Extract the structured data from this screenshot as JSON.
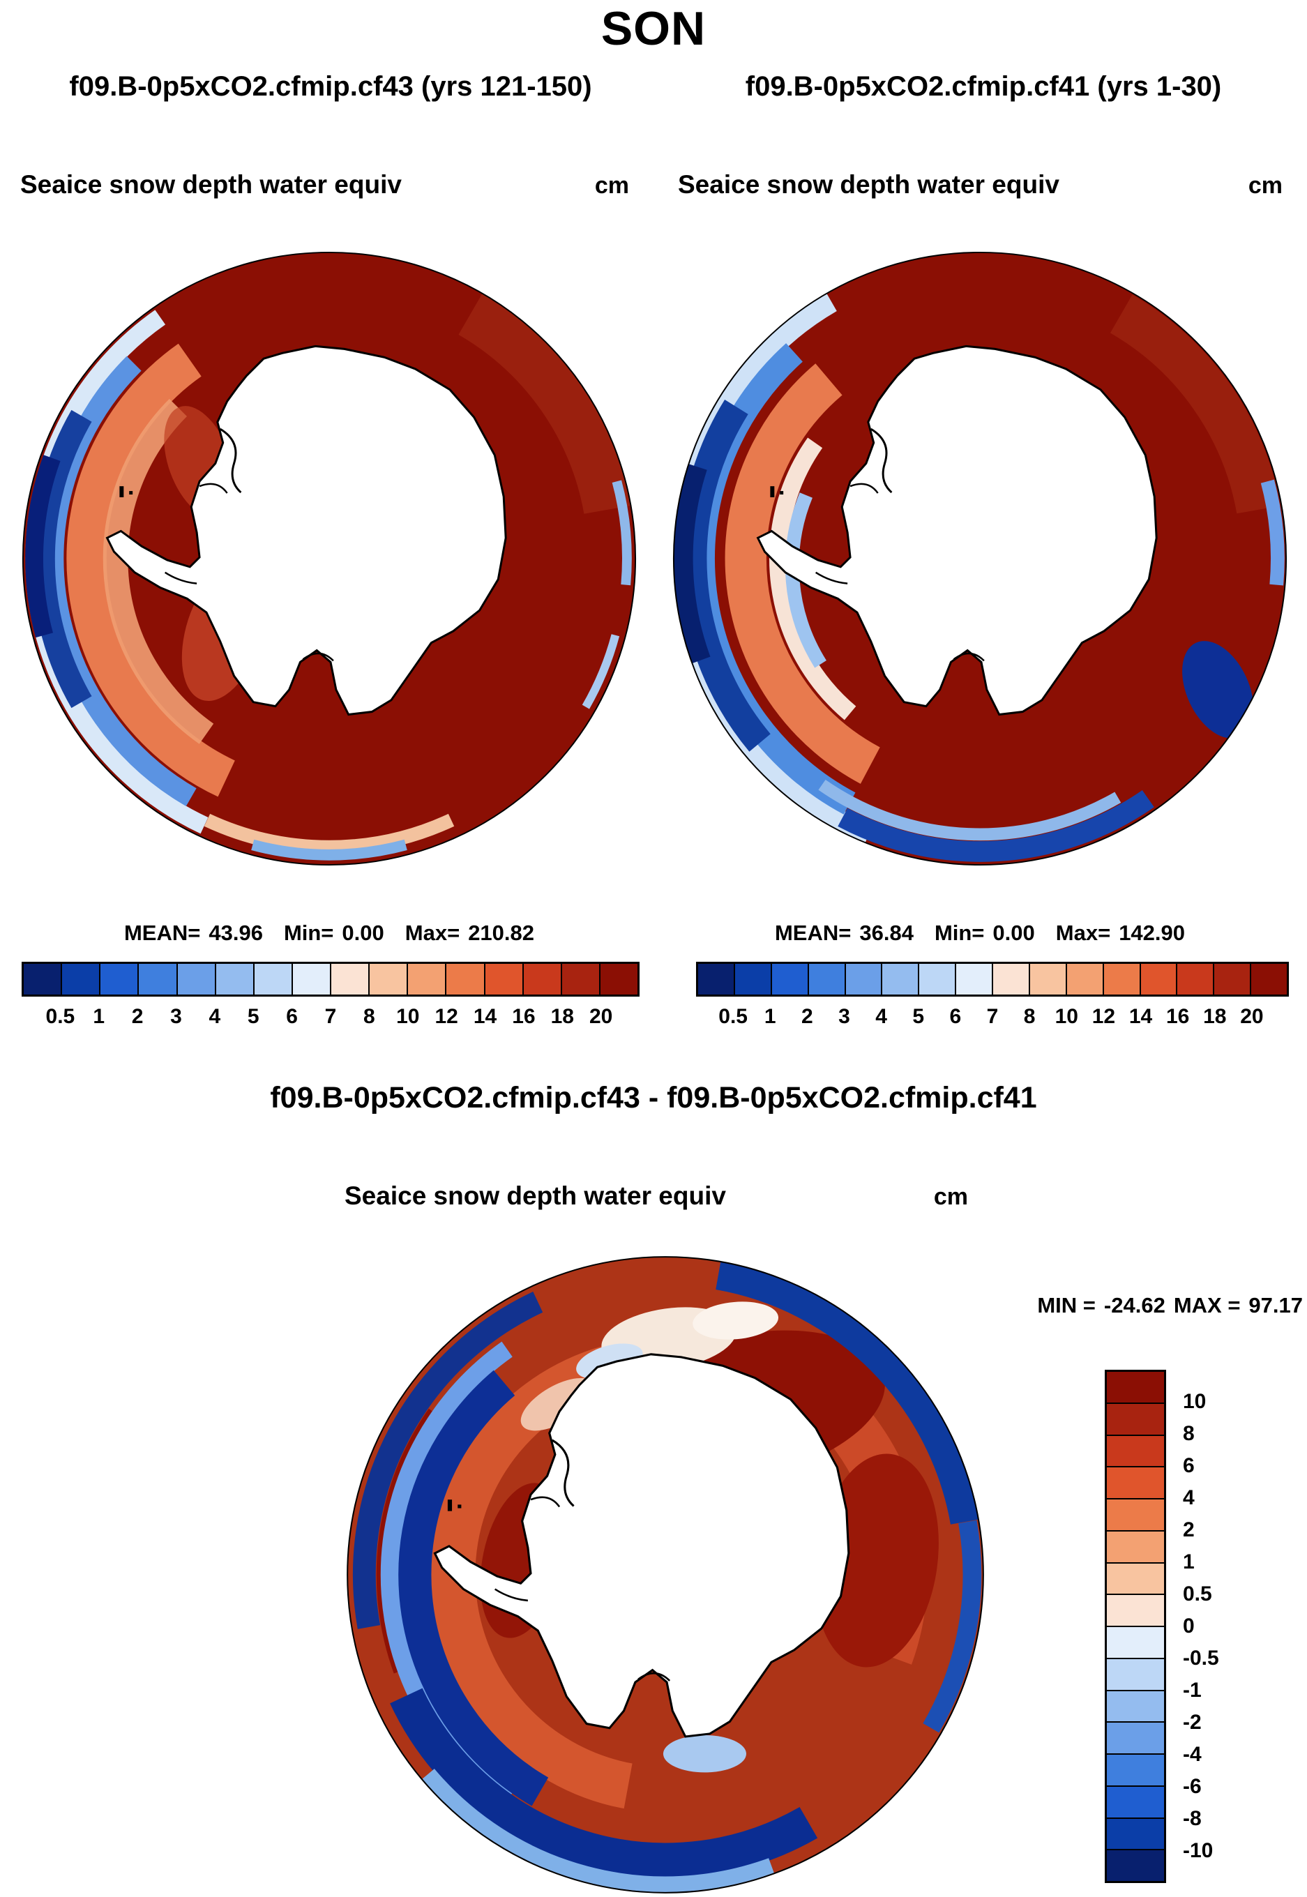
{
  "page": {
    "title": "SON"
  },
  "panels": [
    {
      "title": "f09.B-0p5xCO2.cfmip.cf43 (yrs 121-150)",
      "field_label": "Seaice snow depth water equiv",
      "units": "cm",
      "stats": {
        "mean_label": "MEAN=",
        "mean": "43.96",
        "min_label": "Min=",
        "min": "0.00",
        "max_label": "Max=",
        "max": "210.82"
      }
    },
    {
      "title": "f09.B-0p5xCO2.cfmip.cf41 (yrs 1-30)",
      "field_label": "Seaice snow depth water equiv",
      "units": "cm",
      "stats": {
        "mean_label": "MEAN=",
        "mean": "36.84",
        "min_label": "Min=",
        "min": "0.00",
        "max_label": "Max=",
        "max": "142.90"
      }
    }
  ],
  "shared_colorbar": {
    "ticks": [
      "0.5",
      "1",
      "2",
      "3",
      "4",
      "5",
      "6",
      "7",
      "8",
      "10",
      "12",
      "14",
      "16",
      "18",
      "20"
    ],
    "colors": [
      "#08206e",
      "#0b3ea8",
      "#1f5ed0",
      "#3f7fde",
      "#6b9fe8",
      "#94bcef",
      "#bdd7f6",
      "#e3eefb",
      "#fbe3d4",
      "#f8c4a0",
      "#f3a172",
      "#ec7b49",
      "#e0552c",
      "#c9391c",
      "#a82310",
      "#8b0f04"
    ]
  },
  "diff": {
    "title": "f09.B-0p5xCO2.cfmip.cf43 - f09.B-0p5xCO2.cfmip.cf41",
    "field_label": "Seaice snow depth water equiv",
    "units": "cm",
    "stats": {
      "min_label": "MIN =",
      "min": "-24.62",
      "max_label": "MAX =",
      "max": "97.17"
    },
    "colorbar": {
      "ticks": [
        "10",
        "8",
        "6",
        "4",
        "2",
        "1",
        "0.5",
        "0",
        "-0.5",
        "-1",
        "-2",
        "-4",
        "-6",
        "-8",
        "-10"
      ],
      "colors": [
        "#8b0f04",
        "#a82310",
        "#c9391c",
        "#e0552c",
        "#ec7b49",
        "#f3a172",
        "#f8c4a0",
        "#fbe3d4",
        "#e3eefb",
        "#bdd7f6",
        "#94bcef",
        "#6b9fe8",
        "#3f7fde",
        "#1f5ed0",
        "#0b3ea8",
        "#08206e"
      ]
    }
  },
  "chart_data": [
    {
      "type": "heatmap",
      "title": "f09.B-0p5xCO2.cfmip.cf43 (yrs 121-150)",
      "variable": "Seaice snow depth water equiv",
      "units": "cm",
      "season": "SON",
      "region": "Southern Ocean / Antarctica, south polar stereographic map",
      "stats": {
        "mean": 43.96,
        "min": 0.0,
        "max": 210.82
      },
      "levels": [
        0.5,
        1,
        2,
        3,
        4,
        5,
        6,
        7,
        8,
        10,
        12,
        14,
        16,
        18,
        20
      ],
      "palette": "blue (low) to dark red (high), 16 discrete bins",
      "legend_position": "below map"
    },
    {
      "type": "heatmap",
      "title": "f09.B-0p5xCO2.cfmip.cf41 (yrs 1-30)",
      "variable": "Seaice snow depth water equiv",
      "units": "cm",
      "season": "SON",
      "region": "Southern Ocean / Antarctica, south polar stereographic map",
      "stats": {
        "mean": 36.84,
        "min": 0.0,
        "max": 142.9
      },
      "levels": [
        0.5,
        1,
        2,
        3,
        4,
        5,
        6,
        7,
        8,
        10,
        12,
        14,
        16,
        18,
        20
      ],
      "palette": "blue (low) to dark red (high), 16 discrete bins",
      "legend_position": "below map"
    },
    {
      "type": "heatmap",
      "title": "f09.B-0p5xCO2.cfmip.cf43 - f09.B-0p5xCO2.cfmip.cf41",
      "variable": "Seaice snow depth water equiv (difference)",
      "units": "cm",
      "season": "SON",
      "region": "Southern Ocean / Antarctica, south polar stereographic map",
      "stats": {
        "min": -24.62,
        "max": 97.17
      },
      "levels": [
        -10,
        -8,
        -6,
        -4,
        -2,
        -1,
        -0.5,
        0,
        0.5,
        1,
        2,
        4,
        6,
        8,
        10
      ],
      "palette": "dark blue (negative) to dark red (positive), 16 discrete bins",
      "legend_position": "right of map"
    }
  ]
}
